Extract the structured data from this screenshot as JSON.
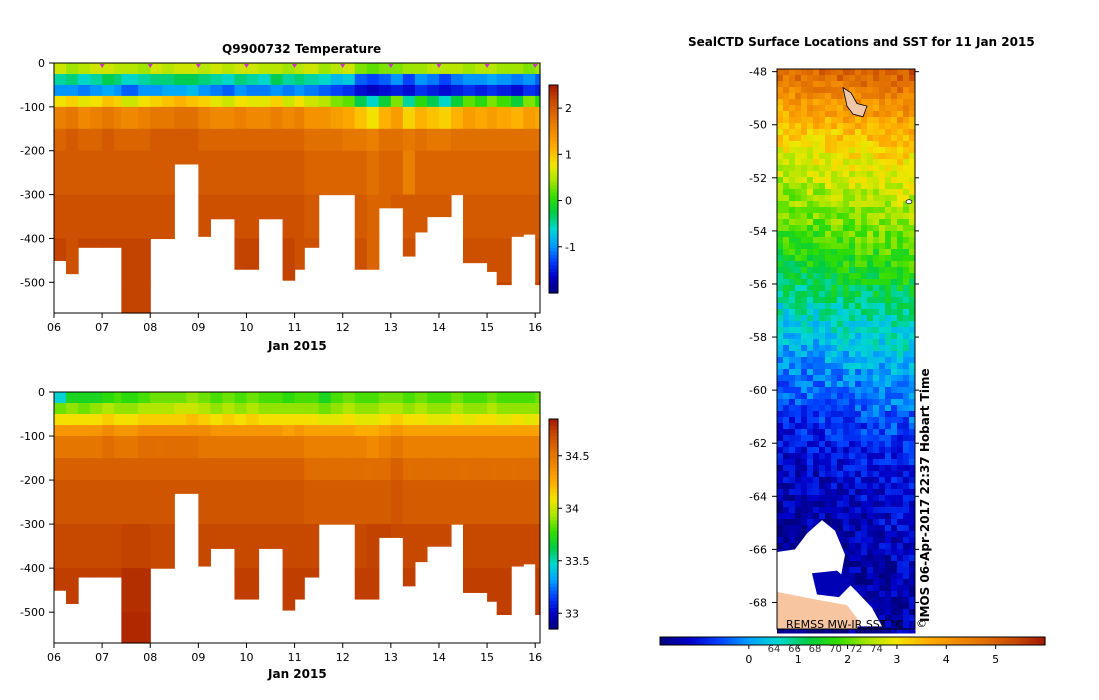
{
  "colors": {
    "scale": [
      "#00007f",
      "#0000c8",
      "#0040ff",
      "#00a0ff",
      "#00d8d0",
      "#00cc44",
      "#33dd00",
      "#a6e600",
      "#f2e600",
      "#ffb000",
      "#f28c00",
      "#e06f00",
      "#c84a00",
      "#a31800"
    ],
    "map_land": "#f7c59f",
    "profile_marker": "#cc33cc"
  },
  "icons": {
    "copyright": "copyright-icon"
  },
  "chart_data": [
    {
      "id": "temperature_section",
      "type": "heatmap",
      "title": "Q9900732  Temperature",
      "xlabel": "Jan 2015",
      "x_ticks": [
        "06",
        "07",
        "08",
        "09",
        "10",
        "11",
        "12",
        "13",
        "14",
        "15",
        "16"
      ],
      "x_range": [
        6.0,
        16.1
      ],
      "y_ticks": [
        0,
        -100,
        -200,
        -300,
        -400,
        -500
      ],
      "y_range": [
        -570,
        0
      ],
      "colorbar": {
        "ticks": [
          "2",
          "1",
          "0",
          "-1"
        ],
        "range": [
          -2.0,
          2.5
        ]
      },
      "profile_markers": [
        7,
        8,
        9,
        10,
        11,
        12,
        13,
        14,
        15,
        16
      ],
      "profile_x": [
        6.0,
        6.25,
        6.5,
        6.75,
        7.0,
        7.25,
        7.4,
        7.75,
        8.0,
        8.25,
        8.5,
        8.75,
        9.0,
        9.25,
        9.5,
        9.75,
        10.0,
        10.25,
        10.5,
        10.75,
        11.0,
        11.2,
        11.5,
        11.75,
        12.0,
        12.25,
        12.5,
        12.75,
        13.0,
        13.25,
        13.5,
        13.75,
        14.0,
        14.25,
        14.5,
        14.75,
        15.0,
        15.2,
        15.5,
        15.75,
        16.0
      ],
      "max_depth": [
        450,
        480,
        420,
        420,
        420,
        420,
        570,
        570,
        400,
        400,
        230,
        230,
        395,
        355,
        355,
        470,
        470,
        355,
        355,
        495,
        470,
        420,
        300,
        300,
        300,
        470,
        470,
        330,
        330,
        440,
        385,
        350,
        350,
        300,
        455,
        455,
        475,
        505,
        395,
        390,
        505
      ],
      "depth_levels": [
        0,
        -25,
        -50,
        -75,
        -100,
        -150,
        -200,
        -300,
        -400,
        -500
      ],
      "values": [
        [
          0.6,
          0.4,
          0.5,
          0.6,
          0.6,
          0.5,
          0.5,
          0.4,
          0.6,
          0.5,
          0.6,
          0.6,
          0.5,
          0.6,
          0.5,
          0.6,
          0.6,
          0.5,
          0.5,
          0.4,
          0.5,
          0.6,
          0.4,
          0.5,
          0.6,
          0.3,
          0.2,
          0.3,
          0.3,
          0.4,
          0.4,
          0.5,
          0.5,
          0.5,
          0.4,
          0.5,
          0.5,
          0.4,
          0.4,
          0.3,
          0.4
        ],
        [
          -0.5,
          -0.4,
          -0.6,
          -0.5,
          -0.3,
          -0.4,
          -0.6,
          -0.5,
          -0.4,
          -0.4,
          -0.3,
          -0.3,
          -0.4,
          -0.5,
          -0.6,
          -0.4,
          -0.5,
          -0.6,
          -0.3,
          -0.5,
          -0.4,
          -0.5,
          -0.6,
          -0.8,
          -0.7,
          -1.2,
          -1.3,
          -1.2,
          -1.0,
          -1.3,
          -1.0,
          -1.1,
          -1.3,
          -1.1,
          -1.0,
          -1.0,
          -0.9,
          -1.0,
          -1.1,
          -1.0,
          -1.2
        ],
        [
          -1.0,
          -1.0,
          -1.1,
          -1.0,
          -0.9,
          -1.0,
          -1.2,
          -1.0,
          -1.0,
          -0.9,
          -0.9,
          -0.8,
          -1.0,
          -1.1,
          -1.2,
          -1.0,
          -1.1,
          -1.1,
          -1.0,
          -1.1,
          -1.0,
          -1.1,
          -1.2,
          -1.3,
          -1.4,
          -1.6,
          -1.7,
          -1.6,
          -1.5,
          -1.6,
          -1.4,
          -1.5,
          -1.6,
          -1.5,
          -1.4,
          -1.5,
          -1.4,
          -1.5,
          -1.6,
          -1.4,
          -1.5
        ],
        [
          0.8,
          0.9,
          0.7,
          0.8,
          1.0,
          0.9,
          0.6,
          0.8,
          0.9,
          1.0,
          1.1,
          1.0,
          0.9,
          0.7,
          0.6,
          0.8,
          0.7,
          0.7,
          0.9,
          0.6,
          0.8,
          0.6,
          0.5,
          0.3,
          0.2,
          -0.3,
          -0.6,
          -0.2,
          0.3,
          -0.5,
          0.0,
          -0.3,
          -0.6,
          -0.2,
          0.2,
          0.0,
          0.3,
          0.1,
          -0.2,
          0.3,
          0.0
        ],
        [
          1.6,
          1.7,
          1.5,
          1.6,
          1.7,
          1.6,
          1.5,
          1.6,
          1.7,
          1.7,
          1.8,
          1.8,
          1.6,
          1.5,
          1.5,
          1.6,
          1.5,
          1.5,
          1.6,
          1.5,
          1.6,
          1.4,
          1.4,
          1.3,
          1.2,
          1.0,
          0.8,
          1.1,
          1.3,
          0.9,
          1.1,
          1.0,
          0.9,
          1.1,
          1.3,
          1.2,
          1.3,
          1.2,
          1.1,
          1.3,
          1.2
        ],
        [
          1.9,
          2.0,
          1.9,
          1.9,
          2.0,
          1.9,
          1.9,
          1.9,
          2.0,
          2.0,
          2.0,
          2.0,
          1.9,
          1.9,
          1.9,
          1.9,
          1.9,
          1.9,
          1.9,
          1.9,
          1.9,
          1.8,
          1.8,
          1.8,
          1.7,
          1.7,
          1.6,
          1.8,
          1.8,
          1.7,
          1.8,
          1.7,
          1.7,
          1.8,
          1.8,
          1.8,
          1.8,
          1.8,
          1.8,
          1.8,
          1.8
        ],
        [
          2.0,
          2.0,
          2.0,
          2.0,
          2.0,
          2.0,
          2.0,
          2.0,
          2.0,
          2.0,
          2.0,
          2.0,
          2.0,
          2.0,
          2.0,
          2.0,
          2.0,
          2.0,
          2.0,
          2.0,
          2.0,
          1.9,
          1.9,
          1.9,
          1.9,
          1.9,
          1.8,
          1.9,
          1.9,
          1.6,
          1.9,
          1.9,
          1.9,
          1.9,
          1.9,
          1.9,
          1.9,
          1.9,
          1.9,
          1.9,
          1.9
        ],
        [
          2.1,
          2.1,
          2.1,
          2.1,
          2.1,
          2.1,
          2.1,
          2.1,
          2.1,
          2.1,
          2.1,
          2.1,
          2.1,
          2.1,
          2.1,
          2.1,
          2.1,
          2.1,
          2.1,
          2.1,
          2.1,
          2.0,
          2.0,
          2.0,
          2.0,
          2.0,
          1.9,
          1.9,
          2.0,
          2.0,
          2.0,
          2.0,
          2.0,
          2.0,
          2.0,
          2.0,
          2.0,
          2.0,
          2.0,
          2.0,
          2.0
        ],
        [
          2.2,
          2.1,
          2.2,
          2.2,
          2.2,
          2.2,
          2.2,
          2.2,
          2.2,
          2.2,
          2.2,
          2.2,
          2.2,
          2.2,
          2.2,
          2.2,
          2.2,
          2.2,
          2.2,
          2.2,
          2.1,
          2.1,
          2.1,
          2.1,
          2.1,
          2.1,
          1.9,
          1.9,
          2.1,
          2.1,
          2.1,
          2.1,
          2.1,
          2.1,
          2.1,
          2.1,
          2.1,
          2.1,
          2.1,
          2.1,
          2.1
        ],
        [
          2.2,
          2.2,
          2.2,
          2.2,
          2.2,
          2.2,
          2.2,
          2.2,
          2.2,
          2.2,
          2.2,
          2.2,
          2.2,
          2.2,
          2.2,
          2.2,
          2.2,
          2.2,
          2.2,
          2.2,
          2.2,
          2.2,
          2.2,
          2.2,
          2.2,
          2.2,
          1.9,
          1.9,
          2.2,
          2.2,
          2.2,
          2.2,
          2.2,
          2.2,
          2.2,
          2.2,
          2.2,
          2.2,
          2.2,
          2.2,
          2.2
        ]
      ]
    },
    {
      "id": "salinity_section",
      "type": "heatmap",
      "title": "",
      "xlabel": "Jan 2015",
      "x_ticks": [
        "06",
        "07",
        "08",
        "09",
        "10",
        "11",
        "12",
        "13",
        "14",
        "15",
        "16"
      ],
      "x_range": [
        6.0,
        16.1
      ],
      "y_ticks": [
        0,
        -100,
        -200,
        -300,
        -400,
        -500
      ],
      "y_range": [
        -570,
        0
      ],
      "colorbar": {
        "ticks": [
          "34.5",
          "34",
          "33.5",
          "33"
        ],
        "range": [
          32.85,
          34.85
        ]
      },
      "profile_x": [
        6.0,
        6.25,
        6.5,
        6.75,
        7.0,
        7.25,
        7.4,
        7.75,
        8.0,
        8.25,
        8.5,
        8.75,
        9.0,
        9.25,
        9.5,
        9.75,
        10.0,
        10.25,
        10.5,
        10.75,
        11.0,
        11.2,
        11.5,
        11.75,
        12.0,
        12.25,
        12.5,
        12.75,
        13.0,
        13.25,
        13.5,
        13.75,
        14.0,
        14.25,
        14.5,
        14.75,
        15.0,
        15.2,
        15.5,
        15.75,
        16.0
      ],
      "max_depth": [
        450,
        480,
        420,
        420,
        420,
        420,
        570,
        570,
        400,
        400,
        230,
        230,
        395,
        355,
        355,
        470,
        470,
        355,
        355,
        495,
        470,
        420,
        300,
        300,
        300,
        470,
        470,
        330,
        330,
        440,
        385,
        350,
        350,
        300,
        455,
        455,
        475,
        505,
        395,
        390,
        505
      ],
      "depth_levels": [
        0,
        -25,
        -50,
        -75,
        -100,
        -150,
        -200,
        -300,
        -400,
        -500
      ],
      "values": [
        [
          33.45,
          33.7,
          33.7,
          33.7,
          33.75,
          33.8,
          33.75,
          33.8,
          33.85,
          33.85,
          33.85,
          33.9,
          33.85,
          33.8,
          33.85,
          33.8,
          33.85,
          33.8,
          33.8,
          33.75,
          33.8,
          33.8,
          33.7,
          33.8,
          33.85,
          33.8,
          33.8,
          33.85,
          33.85,
          33.8,
          33.85,
          33.8,
          33.8,
          33.85,
          33.8,
          33.8,
          33.85,
          33.8,
          33.8,
          33.8,
          33.85
        ],
        [
          33.85,
          33.9,
          33.85,
          33.9,
          33.95,
          33.9,
          33.9,
          33.95,
          33.95,
          33.95,
          34.0,
          34.0,
          33.95,
          33.9,
          33.95,
          33.9,
          33.95,
          33.9,
          33.9,
          33.9,
          33.9,
          33.9,
          33.85,
          33.9,
          33.95,
          33.9,
          33.9,
          33.95,
          33.95,
          33.9,
          33.95,
          33.9,
          33.9,
          33.95,
          33.9,
          33.9,
          33.95,
          33.9,
          33.9,
          33.9,
          33.9
        ],
        [
          34.1,
          34.1,
          34.1,
          34.1,
          34.15,
          34.1,
          34.1,
          34.15,
          34.15,
          34.15,
          34.15,
          34.2,
          34.15,
          34.1,
          34.15,
          34.1,
          34.15,
          34.1,
          34.1,
          34.1,
          34.1,
          34.1,
          34.05,
          34.05,
          34.1,
          34.05,
          34.05,
          34.1,
          34.15,
          34.1,
          34.1,
          34.05,
          34.05,
          34.1,
          34.05,
          34.1,
          34.1,
          34.05,
          34.1,
          34.05,
          34.1
        ],
        [
          34.35,
          34.35,
          34.35,
          34.35,
          34.4,
          34.35,
          34.35,
          34.4,
          34.4,
          34.4,
          34.4,
          34.4,
          34.4,
          34.35,
          34.35,
          34.35,
          34.35,
          34.35,
          34.35,
          34.3,
          34.35,
          34.3,
          34.3,
          34.3,
          34.3,
          34.25,
          34.25,
          34.3,
          34.35,
          34.3,
          34.3,
          34.3,
          34.3,
          34.3,
          34.3,
          34.3,
          34.3,
          34.3,
          34.3,
          34.3,
          34.3
        ],
        [
          34.5,
          34.5,
          34.5,
          34.5,
          34.55,
          34.5,
          34.5,
          34.55,
          34.55,
          34.55,
          34.55,
          34.55,
          34.5,
          34.5,
          34.5,
          34.5,
          34.5,
          34.5,
          34.5,
          34.5,
          34.5,
          34.45,
          34.45,
          34.45,
          34.45,
          34.45,
          34.4,
          34.45,
          34.5,
          34.45,
          34.45,
          34.45,
          34.45,
          34.45,
          34.45,
          34.45,
          34.45,
          34.45,
          34.45,
          34.45,
          34.45
        ],
        [
          34.6,
          34.6,
          34.6,
          34.6,
          34.6,
          34.6,
          34.6,
          34.6,
          34.6,
          34.6,
          34.6,
          34.6,
          34.6,
          34.6,
          34.6,
          34.6,
          34.6,
          34.6,
          34.6,
          34.6,
          34.6,
          34.55,
          34.55,
          34.55,
          34.55,
          34.55,
          34.55,
          34.55,
          34.6,
          34.55,
          34.55,
          34.55,
          34.55,
          34.55,
          34.55,
          34.55,
          34.55,
          34.55,
          34.55,
          34.55,
          34.55
        ],
        [
          34.65,
          34.65,
          34.65,
          34.65,
          34.65,
          34.65,
          34.65,
          34.65,
          34.65,
          34.65,
          34.65,
          34.65,
          34.65,
          34.65,
          34.65,
          34.65,
          34.65,
          34.65,
          34.65,
          34.65,
          34.65,
          34.62,
          34.62,
          34.62,
          34.62,
          34.62,
          34.62,
          34.62,
          34.65,
          34.62,
          34.62,
          34.62,
          34.62,
          34.62,
          34.62,
          34.62,
          34.62,
          34.62,
          34.62,
          34.62,
          34.62
        ],
        [
          34.7,
          34.7,
          34.7,
          34.7,
          34.7,
          34.7,
          34.72,
          34.72,
          34.7,
          34.7,
          34.7,
          34.7,
          34.7,
          34.7,
          34.7,
          34.7,
          34.7,
          34.7,
          34.7,
          34.7,
          34.7,
          34.7,
          34.7,
          34.7,
          34.7,
          34.7,
          34.72,
          34.72,
          34.7,
          34.7,
          34.7,
          34.7,
          34.7,
          34.7,
          34.7,
          34.7,
          34.7,
          34.7,
          34.7,
          34.7,
          34.7
        ],
        [
          34.73,
          34.73,
          34.73,
          34.73,
          34.73,
          34.73,
          34.78,
          34.78,
          34.73,
          34.73,
          34.73,
          34.73,
          34.73,
          34.73,
          34.73,
          34.73,
          34.73,
          34.73,
          34.73,
          34.73,
          34.73,
          34.73,
          34.73,
          34.73,
          34.73,
          34.73,
          34.73,
          34.73,
          34.73,
          34.73,
          34.73,
          34.73,
          34.73,
          34.73,
          34.73,
          34.73,
          34.73,
          34.73,
          34.73,
          34.73,
          34.73
        ],
        [
          34.75,
          34.75,
          34.75,
          34.75,
          34.75,
          34.75,
          34.8,
          34.8,
          34.75,
          34.75,
          34.75,
          34.75,
          34.75,
          34.75,
          34.75,
          34.75,
          34.75,
          34.75,
          34.75,
          34.75,
          34.75,
          34.75,
          34.75,
          34.75,
          34.75,
          34.75,
          34.75,
          34.75,
          34.75,
          34.75,
          34.75,
          34.75,
          34.75,
          34.75,
          34.75,
          34.75,
          34.75,
          34.75,
          34.75,
          34.75,
          34.75
        ]
      ]
    },
    {
      "id": "sst_map",
      "type": "heatmap",
      "title": "SealCTD Surface Locations and SST for 11 Jan 2015",
      "y_ticks": [
        "-48",
        "-50",
        "-52",
        "-54",
        "-56",
        "-58",
        "-60",
        "-62",
        "-64",
        "-66",
        "-68"
      ],
      "y_range": [
        -69.0,
        -47.9
      ],
      "source_label": "REMSS MW-IR SST °C",
      "side_label": "IMOS 06-Apr-2017 22:37 Hobart Time",
      "colorbar": {
        "ticks": [
          "0",
          "1",
          "2",
          "3",
          "4",
          "5"
        ],
        "range": [
          -1.8,
          6.0
        ],
        "overlap_labels": [
          "64",
          "66",
          "68",
          "70",
          "72",
          "74"
        ]
      },
      "sst_by_latitude": [
        {
          "lat": -48.0,
          "sst": 5.0
        },
        {
          "lat": -49.5,
          "sst": 3.9
        },
        {
          "lat": -51.0,
          "sst": 3.1
        },
        {
          "lat": -53.0,
          "sst": 2.4
        },
        {
          "lat": -55.0,
          "sst": 1.7
        },
        {
          "lat": -57.0,
          "sst": 0.8
        },
        {
          "lat": -59.0,
          "sst": 0.1
        },
        {
          "lat": -61.0,
          "sst": -0.6
        },
        {
          "lat": -63.0,
          "sst": -1.1
        },
        {
          "lat": -66.0,
          "sst": -1.4
        },
        {
          "lat": -68.0,
          "sst": -1.6
        }
      ]
    }
  ]
}
